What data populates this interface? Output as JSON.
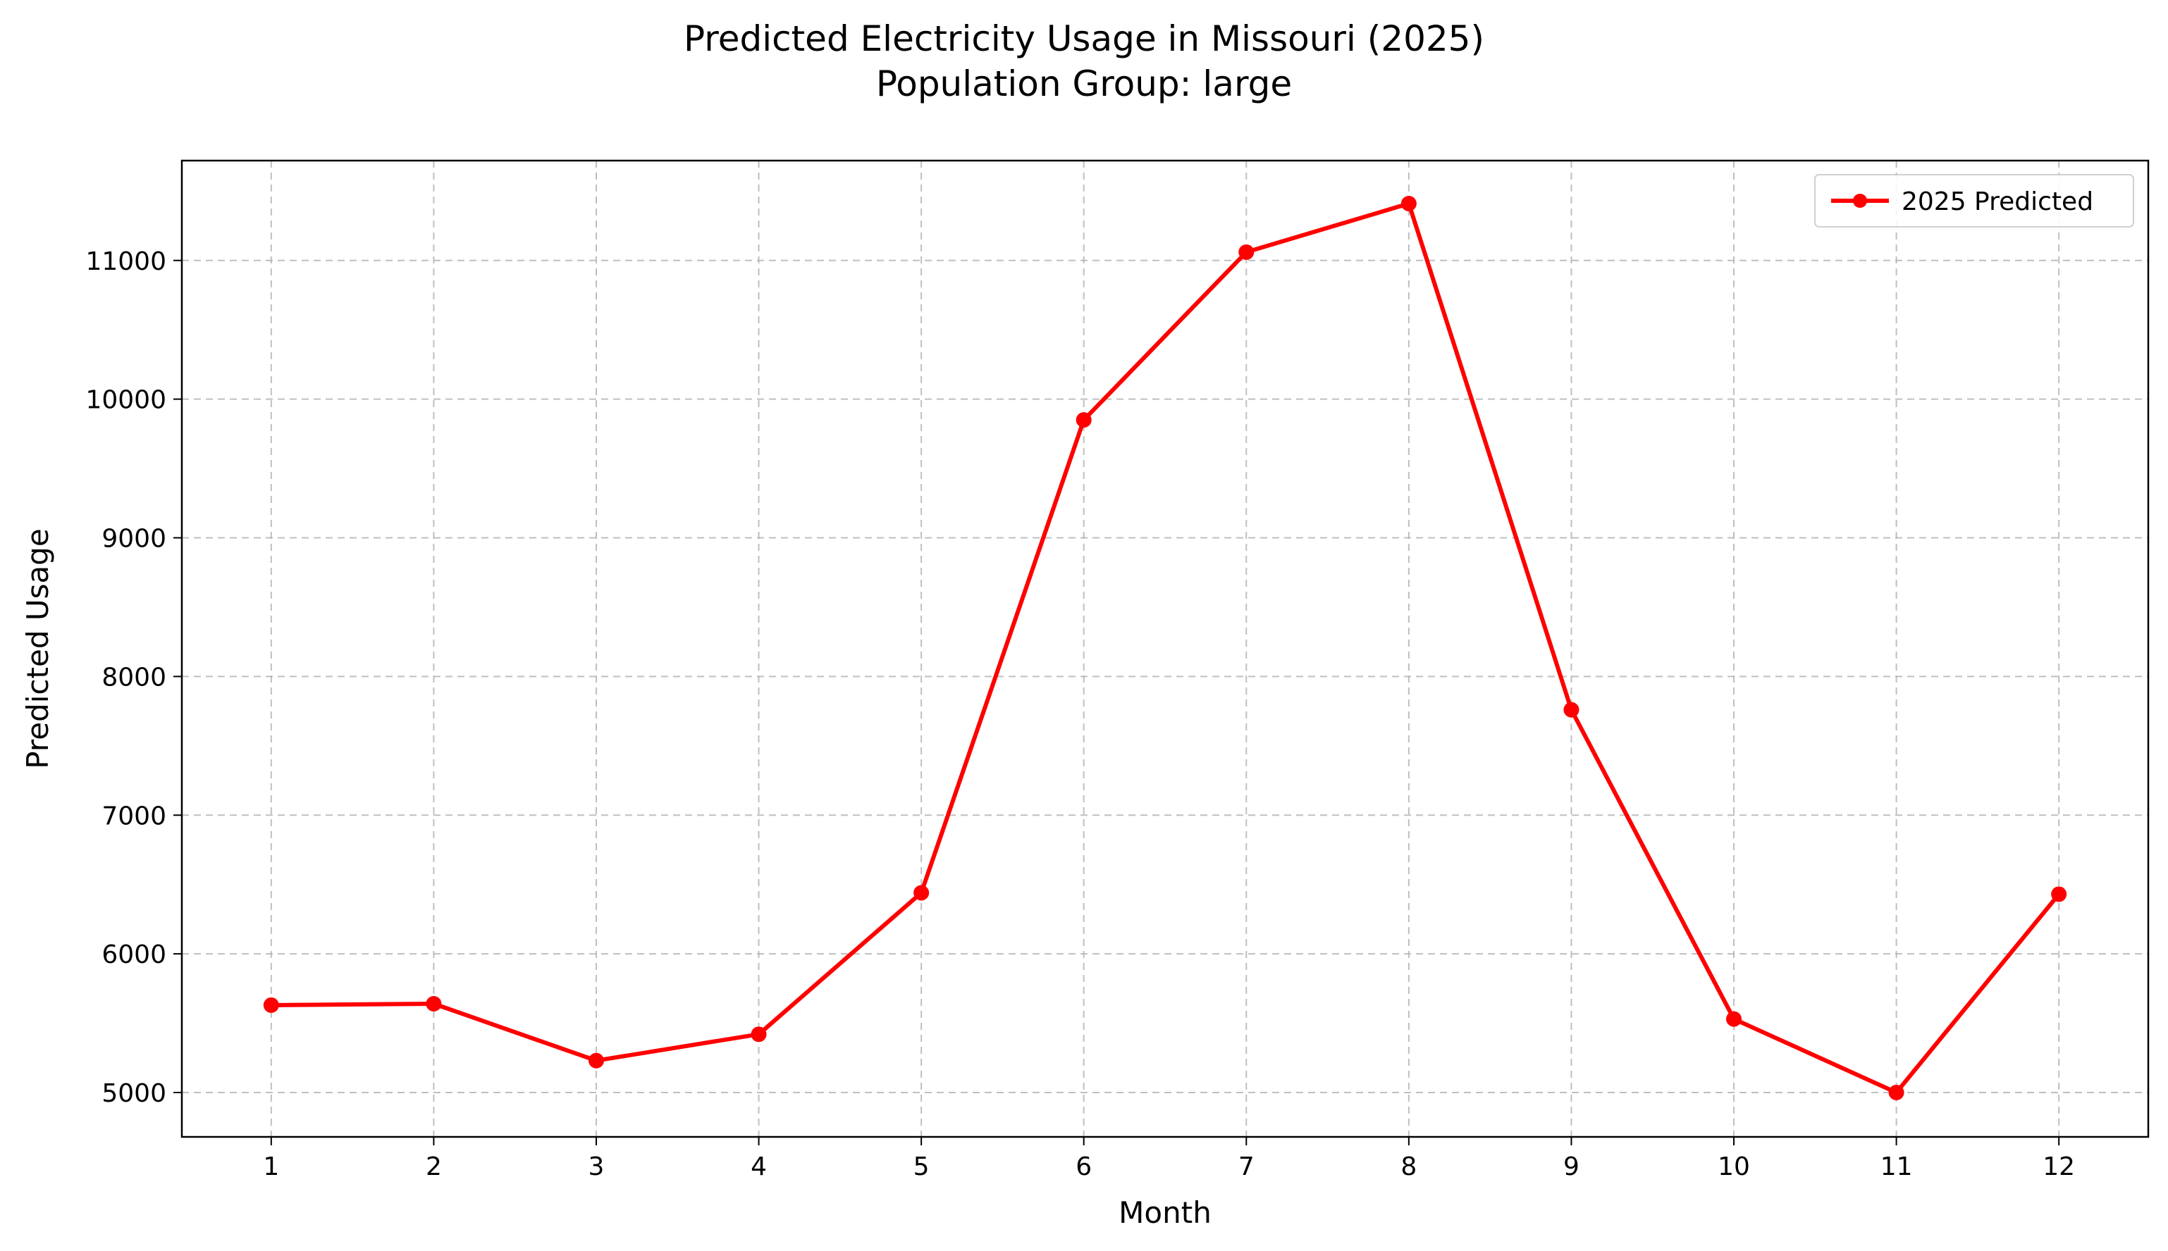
{
  "chart_data": {
    "type": "line",
    "title": "Predicted Electricity Usage in Missouri (2025)",
    "subtitle": "Population Group: large",
    "xlabel": "Month",
    "ylabel": "Predicted Usage",
    "x": [
      1,
      2,
      3,
      4,
      5,
      6,
      7,
      8,
      9,
      10,
      11,
      12
    ],
    "xticks": [
      "1",
      "2",
      "3",
      "4",
      "5",
      "6",
      "7",
      "8",
      "9",
      "10",
      "11",
      "12"
    ],
    "yticks": [
      "5000",
      "6000",
      "7000",
      "8000",
      "9000",
      "10000",
      "11000"
    ],
    "xlim": [
      0.45,
      12.55
    ],
    "ylim": [
      4680,
      11720
    ],
    "grid": true,
    "legend_position": "top-right",
    "series": [
      {
        "name": "2025 Predicted",
        "color": "#ff0000",
        "marker": "circle",
        "values": [
          5630,
          5640,
          5230,
          5420,
          6440,
          9850,
          11060,
          11410,
          7760,
          5530,
          5000,
          6430
        ]
      }
    ]
  }
}
